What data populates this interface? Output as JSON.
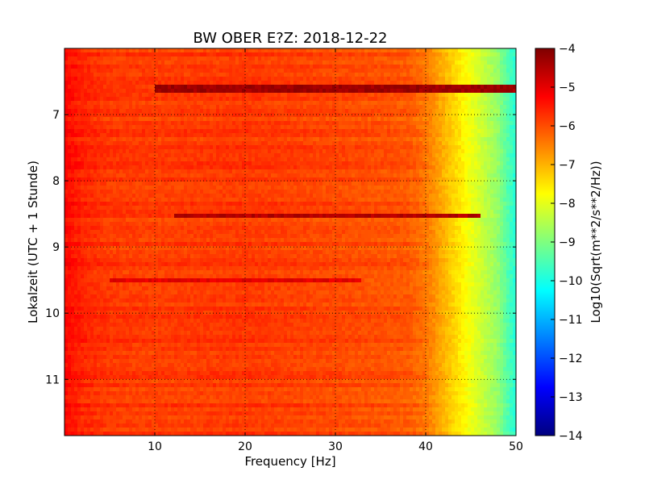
{
  "chart_data": {
    "type": "heatmap",
    "title": "BW OBER E?Z: 2018-12-22",
    "xlabel": "Frequency [Hz]",
    "ylabel": "Lokalzeit (UTC + 1 Stunde)",
    "x_range": [
      0,
      50
    ],
    "y_range": [
      6.0,
      11.85
    ],
    "y_inverted": true,
    "x_ticks": [
      10,
      20,
      30,
      40,
      50
    ],
    "y_ticks": [
      7,
      8,
      9,
      10,
      11
    ],
    "grid": true,
    "grid_style": "dotted",
    "colormap": "jet",
    "colorbar": {
      "label": "Log10(Sqrt(m**2/s**2/Hz))",
      "range": [
        -14,
        -4
      ],
      "ticks": [
        -4,
        -5,
        -6,
        -7,
        -8,
        -9,
        -10,
        -11,
        -12,
        -13,
        -14
      ]
    },
    "typical_level_by_frequency": {
      "frequency_hz": [
        0,
        2,
        5,
        10,
        20,
        30,
        38,
        40,
        42,
        44,
        46,
        48,
        49,
        50
      ],
      "log10_amplitude": [
        -5.3,
        -5.6,
        -5.8,
        -5.85,
        -5.8,
        -5.95,
        -6.1,
        -6.4,
        -7.0,
        -7.6,
        -8.2,
        -8.8,
        -9.4,
        -9.9
      ]
    },
    "high_energy_bands": [
      {
        "time_hours": 6.6,
        "freq_range_hz": [
          10,
          50
        ],
        "log10_amplitude": -4.3
      },
      {
        "time_hours": 8.52,
        "freq_range_hz": [
          12,
          46
        ],
        "log10_amplitude": -4.5
      },
      {
        "time_hours": 9.5,
        "freq_range_hz": [
          5,
          33
        ],
        "log10_amplitude": -5.0
      }
    ]
  },
  "colors": {
    "jet": [
      "#00007f",
      "#0000ff",
      "#007fff",
      "#00ffff",
      "#7fff7f",
      "#ffff00",
      "#ff7f00",
      "#ff0000",
      "#7f0000"
    ]
  }
}
